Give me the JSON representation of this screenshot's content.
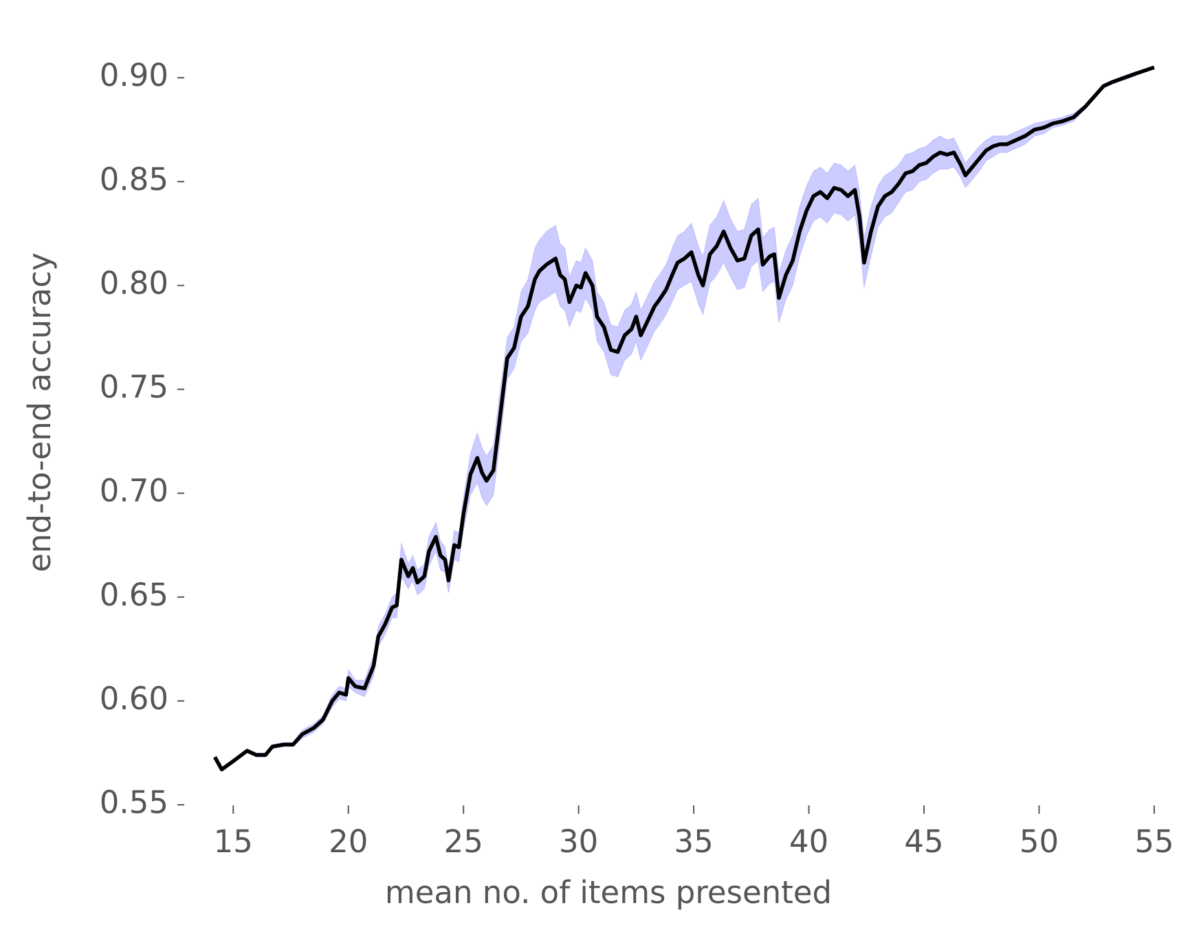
{
  "chart_data": {
    "type": "line",
    "xlabel": "mean no. of items presented",
    "ylabel": "end-to-end accuracy",
    "xlim": [
      13.2,
      55.3
    ],
    "ylim": [
      0.55,
      0.906
    ],
    "xticks": [
      15,
      20,
      25,
      30,
      35,
      40,
      45,
      50,
      55
    ],
    "yticks": [
      0.55,
      {
        "value": 0.6,
        "label": "0.60"
      },
      0.65,
      {
        "value": 0.7,
        "label": "0.70"
      },
      0.75,
      {
        "value": 0.8,
        "label": "0.80"
      },
      0.85,
      {
        "value": 0.9,
        "label": "0.90"
      }
    ],
    "grid": false,
    "x": [
      14.2,
      14.5,
      15.0,
      15.6,
      16.0,
      16.4,
      16.7,
      17.2,
      17.6,
      18.0,
      18.5,
      18.9,
      19.3,
      19.6,
      19.9,
      20.0,
      20.3,
      20.7,
      21.1,
      21.3,
      21.6,
      21.9,
      22.1,
      22.3,
      22.6,
      22.8,
      23.0,
      23.3,
      23.5,
      23.8,
      24.0,
      24.2,
      24.35,
      24.6,
      24.8,
      25.0,
      25.3,
      25.6,
      25.8,
      26.0,
      26.3,
      26.6,
      26.9,
      27.2,
      27.5,
      27.8,
      28.1,
      28.3,
      28.6,
      29.0,
      29.2,
      29.4,
      29.6,
      29.9,
      30.1,
      30.3,
      30.6,
      30.8,
      31.1,
      31.4,
      31.7,
      32.0,
      32.3,
      32.5,
      32.7,
      33.0,
      33.3,
      33.5,
      33.8,
      34.1,
      34.3,
      34.6,
      34.9,
      35.2,
      35.4,
      35.7,
      36.0,
      36.3,
      36.6,
      36.9,
      37.2,
      37.5,
      37.8,
      38.0,
      38.3,
      38.5,
      38.7,
      39.0,
      39.3,
      39.6,
      39.9,
      40.2,
      40.5,
      40.8,
      41.1,
      41.4,
      41.7,
      42.0,
      42.2,
      42.4,
      42.7,
      43.0,
      43.3,
      43.6,
      43.9,
      44.2,
      44.5,
      44.8,
      45.1,
      45.4,
      45.7,
      46.0,
      46.3,
      46.6,
      46.8,
      47.1,
      47.4,
      47.7,
      48.0,
      48.3,
      48.6,
      49.0,
      49.4,
      49.8,
      50.2,
      50.6,
      51.0,
      51.5,
      52.0,
      52.4,
      52.8,
      53.2,
      53.7,
      54.2,
      55.0
    ],
    "series": [
      {
        "color": "#000000",
        "band_color": "#0000ff",
        "values": [
          0.573,
          0.567,
          0.571,
          0.576,
          0.574,
          0.574,
          0.578,
          0.579,
          0.579,
          0.584,
          0.587,
          0.591,
          0.6,
          0.604,
          0.603,
          0.611,
          0.607,
          0.606,
          0.617,
          0.631,
          0.637,
          0.645,
          0.646,
          0.668,
          0.66,
          0.664,
          0.657,
          0.66,
          0.672,
          0.679,
          0.67,
          0.668,
          0.658,
          0.675,
          0.674,
          0.69,
          0.709,
          0.717,
          0.71,
          0.706,
          0.711,
          0.738,
          0.765,
          0.77,
          0.785,
          0.79,
          0.803,
          0.807,
          0.81,
          0.813,
          0.805,
          0.803,
          0.792,
          0.8,
          0.799,
          0.806,
          0.8,
          0.785,
          0.78,
          0.769,
          0.768,
          0.776,
          0.779,
          0.785,
          0.776,
          0.783,
          0.79,
          0.793,
          0.798,
          0.806,
          0.811,
          0.813,
          0.816,
          0.805,
          0.8,
          0.815,
          0.819,
          0.826,
          0.818,
          0.812,
          0.813,
          0.824,
          0.827,
          0.81,
          0.814,
          0.815,
          0.794,
          0.805,
          0.812,
          0.826,
          0.836,
          0.843,
          0.845,
          0.842,
          0.847,
          0.846,
          0.843,
          0.846,
          0.833,
          0.811,
          0.826,
          0.838,
          0.843,
          0.845,
          0.849,
          0.854,
          0.855,
          0.858,
          0.859,
          0.862,
          0.864,
          0.863,
          0.864,
          0.858,
          0.853,
          0.857,
          0.861,
          0.865,
          0.867,
          0.868,
          0.868,
          0.87,
          0.872,
          0.875,
          0.876,
          0.878,
          0.879,
          0.881,
          0.886,
          0.891,
          0.896,
          0.898,
          0.9,
          0.902,
          0.905
        ],
        "errors": [
          0,
          0,
          0,
          0.001,
          0.001,
          0.001,
          0.001,
          0.001,
          0.001,
          0.002,
          0.002,
          0.002,
          0.003,
          0.003,
          0.003,
          0.004,
          0.003,
          0.004,
          0.005,
          0.005,
          0.005,
          0.005,
          0.006,
          0.008,
          0.006,
          0.006,
          0.006,
          0.006,
          0.007,
          0.007,
          0.007,
          0.006,
          0.006,
          0.007,
          0.007,
          0.008,
          0.01,
          0.012,
          0.012,
          0.012,
          0.012,
          0.012,
          0.01,
          0.01,
          0.012,
          0.013,
          0.015,
          0.015,
          0.016,
          0.016,
          0.015,
          0.015,
          0.012,
          0.012,
          0.012,
          0.012,
          0.012,
          0.012,
          0.012,
          0.012,
          0.012,
          0.012,
          0.012,
          0.012,
          0.012,
          0.012,
          0.012,
          0.012,
          0.012,
          0.013,
          0.013,
          0.013,
          0.014,
          0.014,
          0.014,
          0.014,
          0.014,
          0.015,
          0.014,
          0.014,
          0.014,
          0.015,
          0.015,
          0.013,
          0.013,
          0.013,
          0.012,
          0.012,
          0.012,
          0.012,
          0.012,
          0.012,
          0.012,
          0.012,
          0.012,
          0.012,
          0.012,
          0.012,
          0.012,
          0.012,
          0.012,
          0.01,
          0.01,
          0.01,
          0.009,
          0.009,
          0.009,
          0.008,
          0.008,
          0.008,
          0.008,
          0.007,
          0.007,
          0.006,
          0.006,
          0.006,
          0.006,
          0.005,
          0.005,
          0.004,
          0.004,
          0.004,
          0.004,
          0.003,
          0.003,
          0.002,
          0.002,
          0.002,
          0.001,
          0.001,
          0.001,
          0.001,
          0.001,
          0.001,
          0
        ]
      }
    ]
  }
}
